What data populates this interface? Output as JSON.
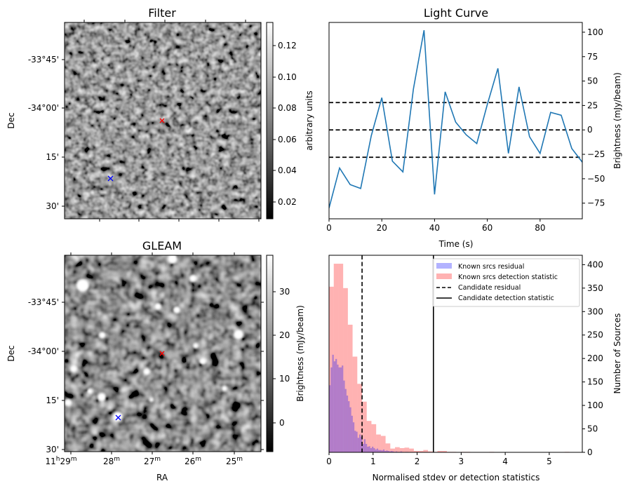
{
  "chart_data": [
    {
      "type": "heatmap",
      "panel": "filter",
      "title": "Filter",
      "ylabel": "Dec",
      "yticks": [
        "-33°45'",
        "-34°00'",
        "15'",
        "30'"
      ],
      "colorbar": {
        "label": "arbitrary units",
        "ticks": [
          "0.02",
          "0.04",
          "0.06",
          "0.08",
          "0.10",
          "0.12"
        ],
        "range": [
          0.009,
          0.134
        ],
        "cmap": "gray"
      },
      "markers": [
        {
          "name": "candidate",
          "symbol": "x",
          "color": "#ff0000"
        },
        {
          "name": "known-source",
          "symbol": "x",
          "color": "#0000ff"
        }
      ]
    },
    {
      "type": "line",
      "panel": "light-curve",
      "title": "Light Curve",
      "xlabel": "Time (s)",
      "ylabel": "Brightness (mJy/beam)",
      "xlim": [
        0,
        96
      ],
      "ylim": [
        -91,
        110
      ],
      "xticks": [
        0,
        20,
        40,
        60,
        80
      ],
      "yticks": [
        -75,
        -50,
        -25,
        0,
        25,
        50,
        75,
        100
      ],
      "series": [
        {
          "name": "light curve",
          "color": "#1f77b4",
          "x": [
            0,
            4,
            8,
            12,
            16,
            20,
            24,
            28,
            32,
            36,
            40,
            44,
            48,
            52,
            56,
            60,
            64,
            68,
            72,
            76,
            80,
            84,
            88,
            92,
            96
          ],
          "y": [
            -80,
            -39,
            -56,
            -60,
            -6,
            33,
            -32,
            -43,
            42,
            102,
            -66,
            39,
            8,
            -5,
            -14,
            26,
            63,
            -24,
            44,
            -7,
            -24,
            18,
            15,
            -19,
            -33
          ]
        }
      ],
      "hlines": [
        {
          "y": 28,
          "style": "dashed",
          "color": "#000000"
        },
        {
          "y": 0,
          "style": "dashed",
          "color": "#000000"
        },
        {
          "y": -28,
          "style": "dashed",
          "color": "#000000"
        }
      ]
    },
    {
      "type": "heatmap",
      "panel": "gleam",
      "title": "GLEAM",
      "xlabel": "RA",
      "ylabel": "Dec",
      "xticks": [
        {
          "h": "11",
          "m": "29"
        },
        {
          "h": "",
          "m": "28"
        },
        {
          "h": "",
          "m": "27"
        },
        {
          "h": "",
          "m": "26"
        },
        {
          "h": "",
          "m": "25"
        }
      ],
      "yticks": [
        "-33°45'",
        "-34°00'",
        "15'",
        "30'"
      ],
      "colorbar": {
        "label": "Brightness (mJy/beam)",
        "ticks": [
          "0",
          "10",
          "20",
          "30"
        ],
        "range": [
          -6.5,
          38
        ],
        "cmap": "gray"
      },
      "markers": [
        {
          "name": "candidate",
          "symbol": "x",
          "color": "#ff0000"
        },
        {
          "name": "known-source",
          "symbol": "x",
          "color": "#0000ff"
        }
      ]
    },
    {
      "type": "bar",
      "panel": "histogram",
      "xlabel": "Normalised stdev or detection statistics",
      "ylabel": "Number of Sources",
      "xlim": [
        0,
        5.75
      ],
      "ylim": [
        0,
        420
      ],
      "xticks": [
        0,
        1,
        2,
        3,
        4,
        5
      ],
      "yticks": [
        0,
        50,
        100,
        150,
        200,
        250,
        300,
        350,
        400
      ],
      "legend_position": "top-right",
      "series": [
        {
          "name": "Known srcs residual",
          "color": "#0000ff",
          "alpha": 0.3,
          "bin_start": 0,
          "bin_width": 0.036,
          "counts": [
            143,
            181,
            208,
            194,
            199,
            187,
            181,
            181,
            185,
            153,
            135,
            121,
            109,
            96,
            78,
            64,
            46,
            44,
            31,
            38,
            33,
            18,
            28,
            18,
            12,
            13,
            9,
            12,
            9,
            6,
            8,
            5,
            5,
            4,
            6,
            3,
            4,
            3,
            2,
            3,
            2,
            1,
            2,
            1,
            1,
            2,
            1,
            0,
            1,
            1
          ]
        },
        {
          "name": "Known srcs detection statistic",
          "color": "#ff0000",
          "alpha": 0.3,
          "bin_start": 0,
          "bin_width": 0.107,
          "counts": [
            353,
            402,
            402,
            350,
            272,
            204,
            146,
            108,
            67,
            60,
            38,
            35,
            19,
            8,
            11,
            9,
            10,
            8,
            3,
            3,
            5,
            2,
            1,
            3,
            3,
            1,
            1,
            0,
            1,
            1,
            0,
            0,
            0,
            0,
            1,
            0,
            0,
            0,
            0,
            0,
            0,
            0,
            0,
            0,
            0,
            0,
            0,
            0,
            0,
            0,
            1
          ]
        }
      ],
      "vlines": [
        {
          "name": "Candidate residual",
          "x": 0.75,
          "style": "dashed",
          "color": "#000000"
        },
        {
          "name": "Candidate detection statistic",
          "x": 2.37,
          "style": "solid",
          "color": "#000000"
        }
      ]
    }
  ]
}
